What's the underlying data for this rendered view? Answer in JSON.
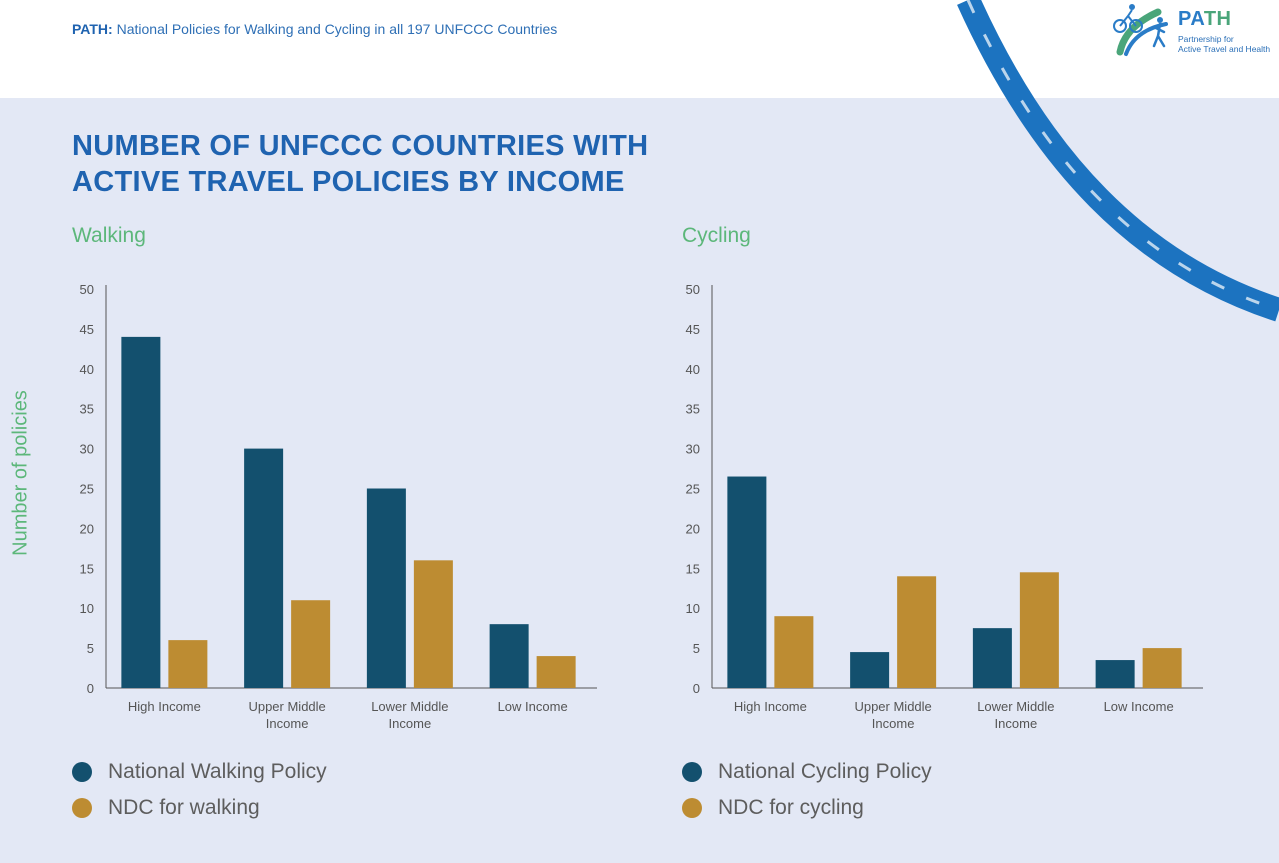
{
  "header": {
    "prefix": "PATH:",
    "text": "National Policies for Walking and Cycling in all 197 UNFCCC Countries"
  },
  "logo": {
    "title_a": "PA",
    "title_b": "TH",
    "subtitle_line1": "Partnership for",
    "subtitle_line2": "Active Travel and Health"
  },
  "title": {
    "line1": "NUMBER OF UNFCCC COUNTRIES WITH",
    "line2": "ACTIVE TRAVEL POLICIES BY INCOME"
  },
  "y_axis_label": "Number of policies",
  "colors": {
    "policy": "#13506e",
    "ndc": "#bd8c32",
    "accent_green": "#5cb77a",
    "title_blue": "#1f63b0",
    "road": "#1c73c0"
  },
  "chart_data": [
    {
      "type": "bar",
      "title": "Walking",
      "ylim": [
        0,
        50
      ],
      "yticks": [
        "0",
        "5",
        "10",
        "15",
        "20",
        "25",
        "30",
        "35",
        "40",
        "45",
        "50"
      ],
      "categories": [
        [
          "High Income"
        ],
        [
          "Upper Middle",
          "Income"
        ],
        [
          "Lower Middle",
          "Income"
        ],
        [
          "Low Income"
        ]
      ],
      "series": [
        {
          "name": "National Walking Policy",
          "values": [
            44,
            30,
            25,
            8
          ]
        },
        {
          "name": "NDC for walking",
          "values": [
            6,
            11,
            16,
            4
          ]
        }
      ],
      "legend": "bottom-left"
    },
    {
      "type": "bar",
      "title": "Cycling",
      "ylim": [
        0,
        50
      ],
      "yticks": [
        "0",
        "5",
        "10",
        "15",
        "20",
        "25",
        "30",
        "35",
        "40",
        "45",
        "50"
      ],
      "categories": [
        [
          "High Income"
        ],
        [
          "Upper Middle",
          "Income"
        ],
        [
          "Lower Middle",
          "Income"
        ],
        [
          "Low Income"
        ]
      ],
      "series": [
        {
          "name": "National Cycling Policy",
          "values": [
            26.5,
            4.5,
            7.5,
            3.5
          ]
        },
        {
          "name": "NDC for cycling",
          "values": [
            9,
            14,
            14.5,
            5
          ]
        }
      ],
      "legend": "bottom-left"
    }
  ]
}
